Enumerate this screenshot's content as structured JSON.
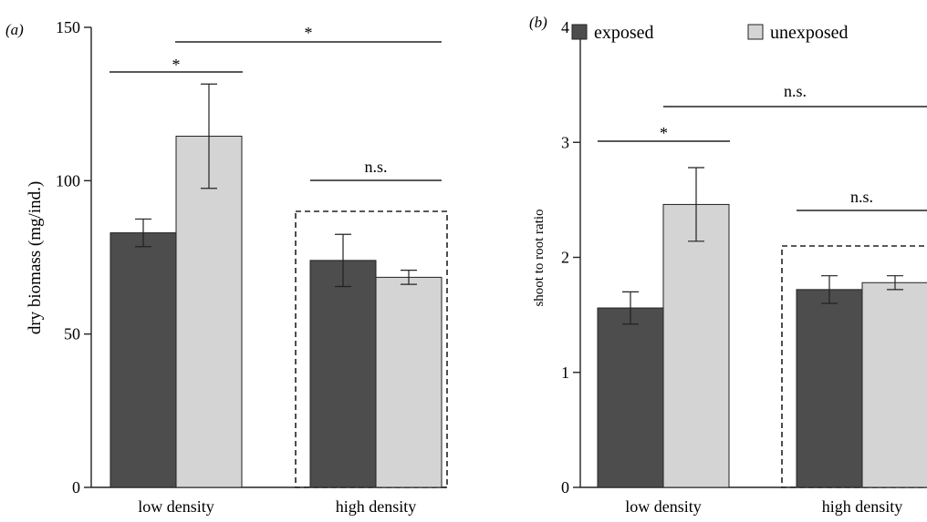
{
  "panels": [
    {
      "label": "(a)",
      "ylabel": "dry biomass (mg/ind.)",
      "tick_labels": [
        "0",
        "50",
        "100",
        "150"
      ],
      "x_labels": [
        "low density",
        "high density"
      ],
      "significance": [
        {
          "text": "*"
        },
        {
          "text": "*"
        },
        {
          "text": "n.s."
        }
      ]
    },
    {
      "label": "(b)",
      "ylabel": "shoot to root ratio",
      "tick_labels": [
        "0",
        "1",
        "2",
        "3",
        "4"
      ],
      "x_labels": [
        "low density",
        "high density"
      ],
      "significance": [
        {
          "text": "*"
        },
        {
          "text": "n.s."
        },
        {
          "text": "n.s."
        }
      ]
    }
  ],
  "legend": {
    "items": [
      {
        "label": "exposed",
        "color": "#4d4d4d"
      },
      {
        "label": "unexposed",
        "color": "#d4d4d4"
      }
    ]
  },
  "chart_data": [
    {
      "type": "bar",
      "categories": [
        "low density",
        "high density"
      ],
      "ylabel": "dry biomass (mg/ind.)",
      "ylim": [
        0,
        150
      ],
      "yticks": [
        0,
        50,
        100,
        150
      ],
      "series": [
        {
          "name": "exposed",
          "color": "#4d4d4d",
          "values": [
            83,
            74
          ],
          "errors": [
            4.5,
            8.5
          ]
        },
        {
          "name": "unexposed",
          "color": "#d4d4d4",
          "values": [
            114.5,
            68.5
          ],
          "errors": [
            17,
            2.3
          ]
        }
      ],
      "highlight_box": "high density",
      "grid": false,
      "legend": "none"
    },
    {
      "type": "bar",
      "categories": [
        "low density",
        "high density"
      ],
      "ylabel": "shoot to root ratio",
      "ylim": [
        0,
        4
      ],
      "yticks": [
        0,
        1,
        2,
        3,
        4
      ],
      "series": [
        {
          "name": "exposed",
          "color": "#4d4d4d",
          "values": [
            1.56,
            1.72
          ],
          "errors": [
            0.14,
            0.12
          ]
        },
        {
          "name": "unexposed",
          "color": "#d4d4d4",
          "values": [
            2.46,
            1.78
          ],
          "errors": [
            0.32,
            0.06
          ]
        }
      ],
      "highlight_box": "high density",
      "grid": false,
      "legend": "top"
    }
  ]
}
